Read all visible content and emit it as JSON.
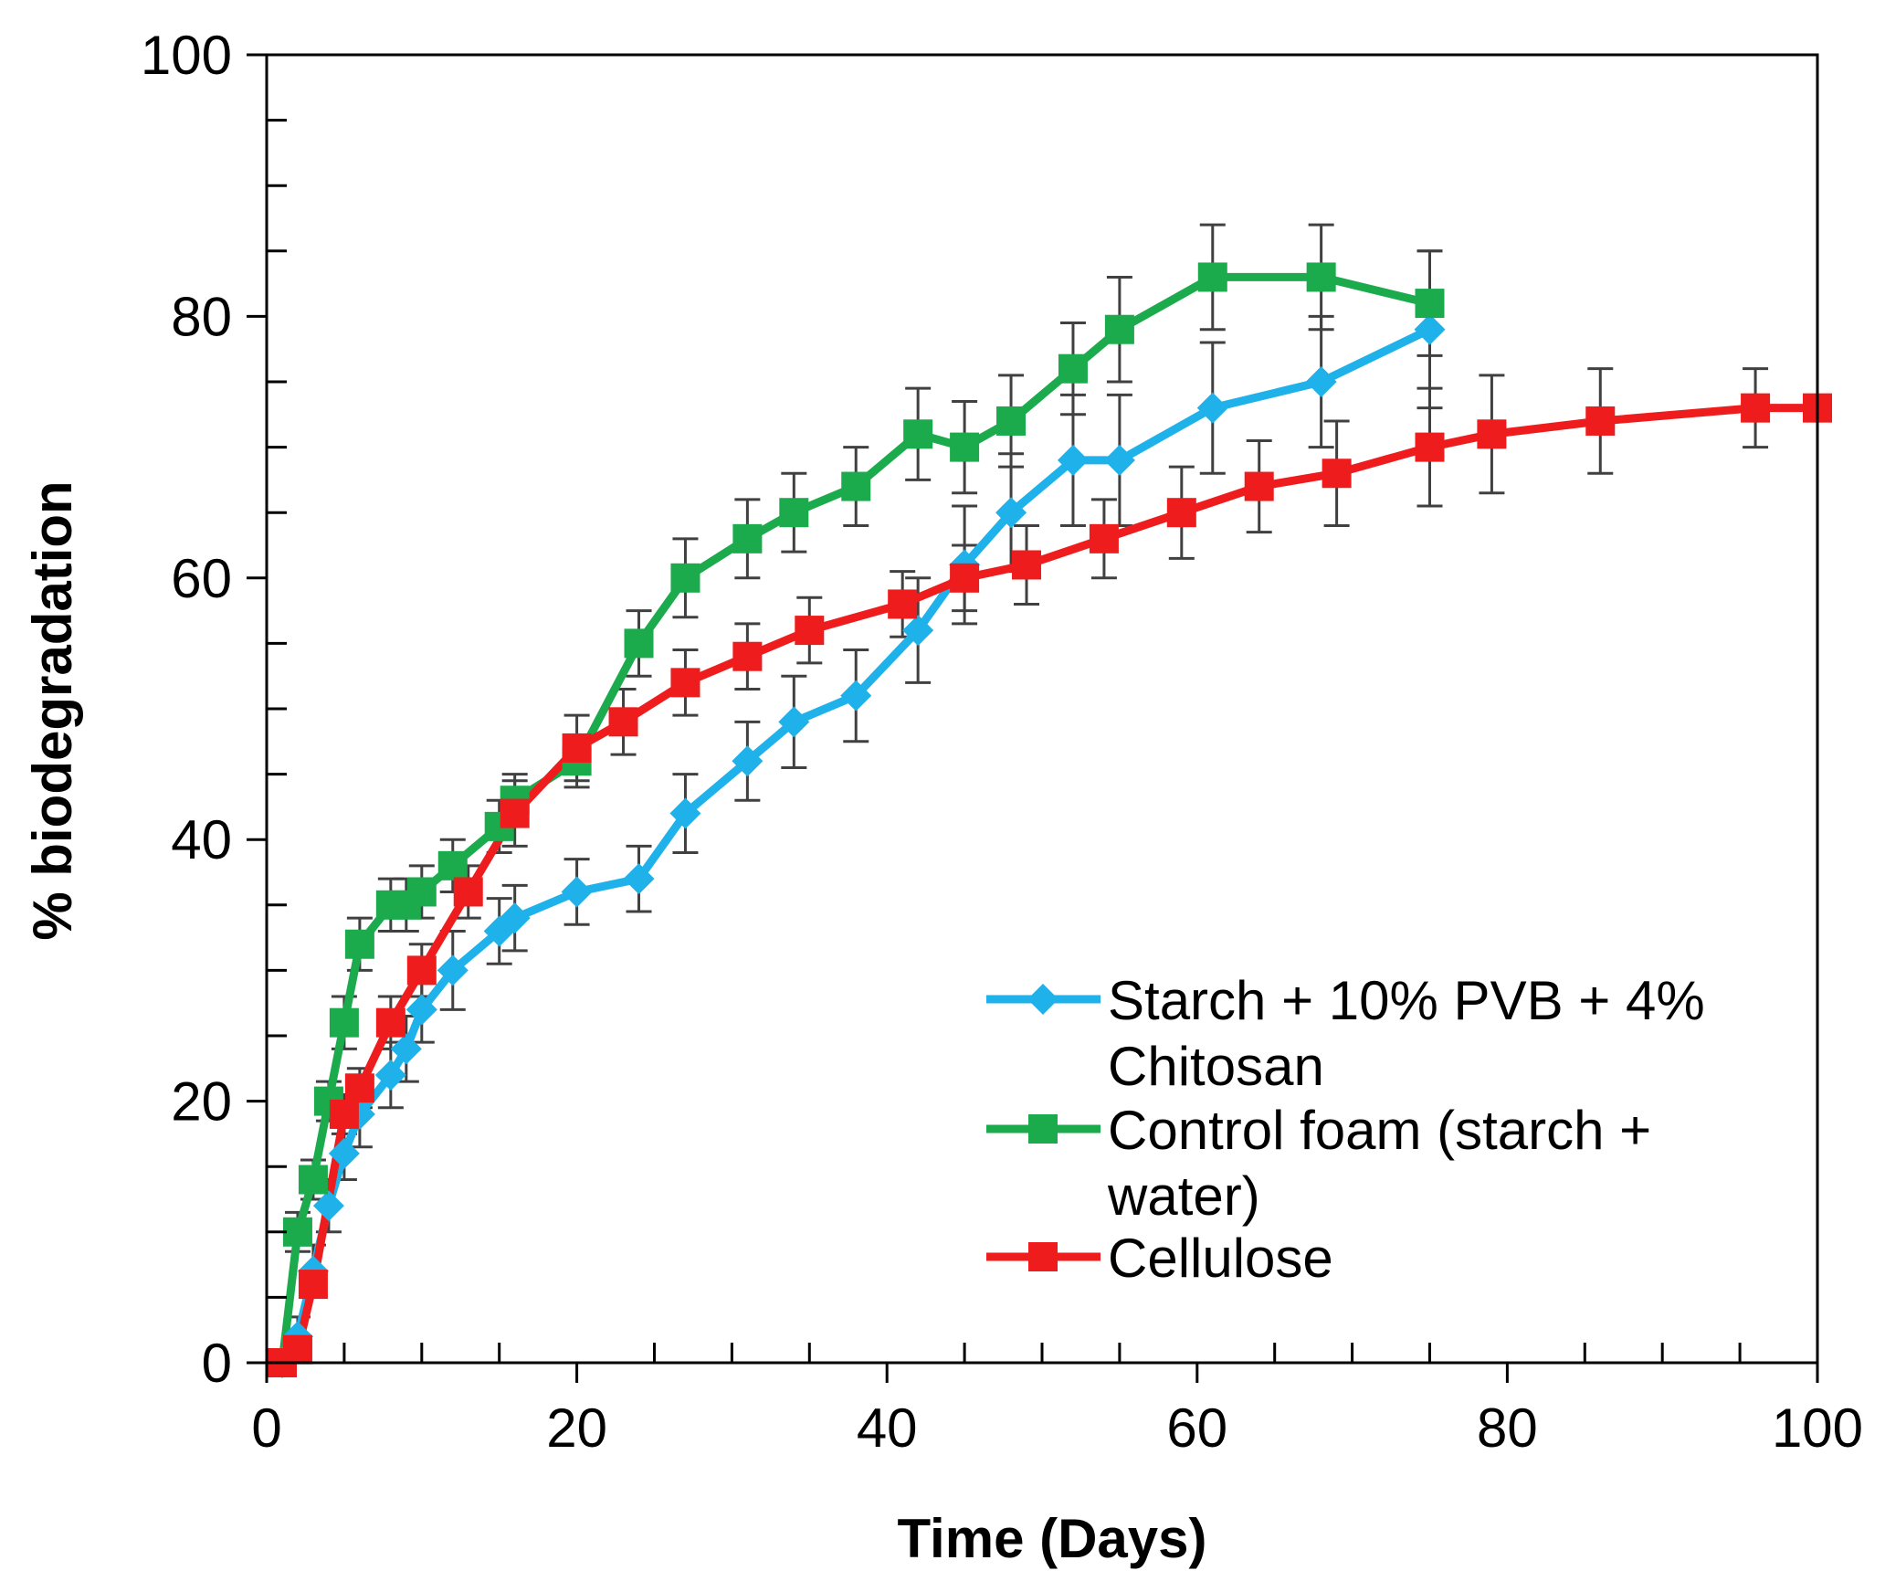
{
  "chart_data": {
    "type": "line",
    "title": "",
    "xlabel": "Time (Days)",
    "ylabel": "% biodegradation",
    "xlim": [
      0,
      100
    ],
    "ylim": [
      0,
      100
    ],
    "xticks": [
      0,
      20,
      40,
      60,
      80,
      100
    ],
    "yticks": [
      0,
      20,
      40,
      60,
      80,
      100
    ],
    "x_minor_step": 5,
    "y_minor_step": 5,
    "grid": false,
    "legend_position": "bottom-right",
    "error_bar_color": "#404040",
    "series": [
      {
        "name": "Starch + 10% PVB + 4% Chitosan",
        "legend_lines": [
          "Starch + 10% PVB + 4%",
          "Chitosan"
        ],
        "color": "#1eb1ea",
        "marker": "diamond",
        "x": [
          1,
          2,
          3,
          4,
          5,
          6,
          8,
          9,
          10,
          12,
          15,
          16,
          20,
          24,
          27,
          31,
          34,
          38,
          42,
          45,
          48,
          52,
          55,
          61,
          68,
          75
        ],
        "y": [
          0,
          2,
          7,
          12,
          16,
          19,
          22,
          24,
          27,
          30,
          33,
          34,
          36,
          37,
          42,
          46,
          49,
          51,
          56,
          61,
          65,
          69,
          69,
          73,
          75,
          79
        ],
        "err": [
          0,
          1.5,
          2,
          2,
          2,
          2.5,
          2.5,
          2.5,
          2.5,
          3,
          2.5,
          2.5,
          2.5,
          2.5,
          3,
          3,
          3.5,
          3.5,
          4,
          4.5,
          4.5,
          5,
          5,
          5,
          5,
          6
        ]
      },
      {
        "name": "Control foam (starch + water)",
        "legend_lines": [
          "Control foam (starch +",
          "water)"
        ],
        "color": "#1bab4c",
        "marker": "square",
        "x": [
          1,
          2,
          3,
          4,
          5,
          6,
          8,
          9,
          10,
          12,
          15,
          16,
          20,
          24,
          27,
          31,
          34,
          38,
          42,
          45,
          48,
          52,
          55,
          61,
          68,
          75
        ],
        "y": [
          0,
          10,
          14,
          20,
          26,
          32,
          35,
          35,
          36,
          38,
          41,
          43,
          46,
          55,
          60,
          63,
          65,
          67,
          71,
          70,
          72,
          76,
          79,
          83,
          83,
          81
        ],
        "err": [
          0,
          1.5,
          1.5,
          1.5,
          2,
          2,
          2,
          2,
          2,
          2,
          2,
          2,
          2,
          2.5,
          3,
          3,
          3,
          3,
          3.5,
          3.5,
          3.5,
          3.5,
          4,
          4,
          4,
          4
        ]
      },
      {
        "name": "Cellulose",
        "legend_lines": [
          "Cellulose"
        ],
        "color": "#ee1c1c",
        "marker": "square",
        "x": [
          1,
          2,
          3,
          5,
          6,
          8,
          10,
          13,
          16,
          20,
          23,
          27,
          31,
          35,
          41,
          45,
          49,
          54,
          59,
          64,
          69,
          75,
          79,
          86,
          96,
          100
        ],
        "y": [
          0,
          1,
          6,
          19,
          21,
          26,
          30,
          36,
          42,
          47,
          49,
          52,
          54,
          56,
          58,
          60,
          61,
          63,
          65,
          67,
          68,
          70,
          71,
          72,
          73,
          73
        ],
        "err": [
          0,
          1,
          1,
          1.5,
          1.5,
          2,
          2,
          2,
          2.5,
          2.5,
          2.5,
          2.5,
          2.5,
          2.5,
          2.5,
          2.5,
          3,
          3,
          3.5,
          3.5,
          4,
          4.5,
          4.5,
          4,
          3,
          0
        ]
      }
    ]
  }
}
